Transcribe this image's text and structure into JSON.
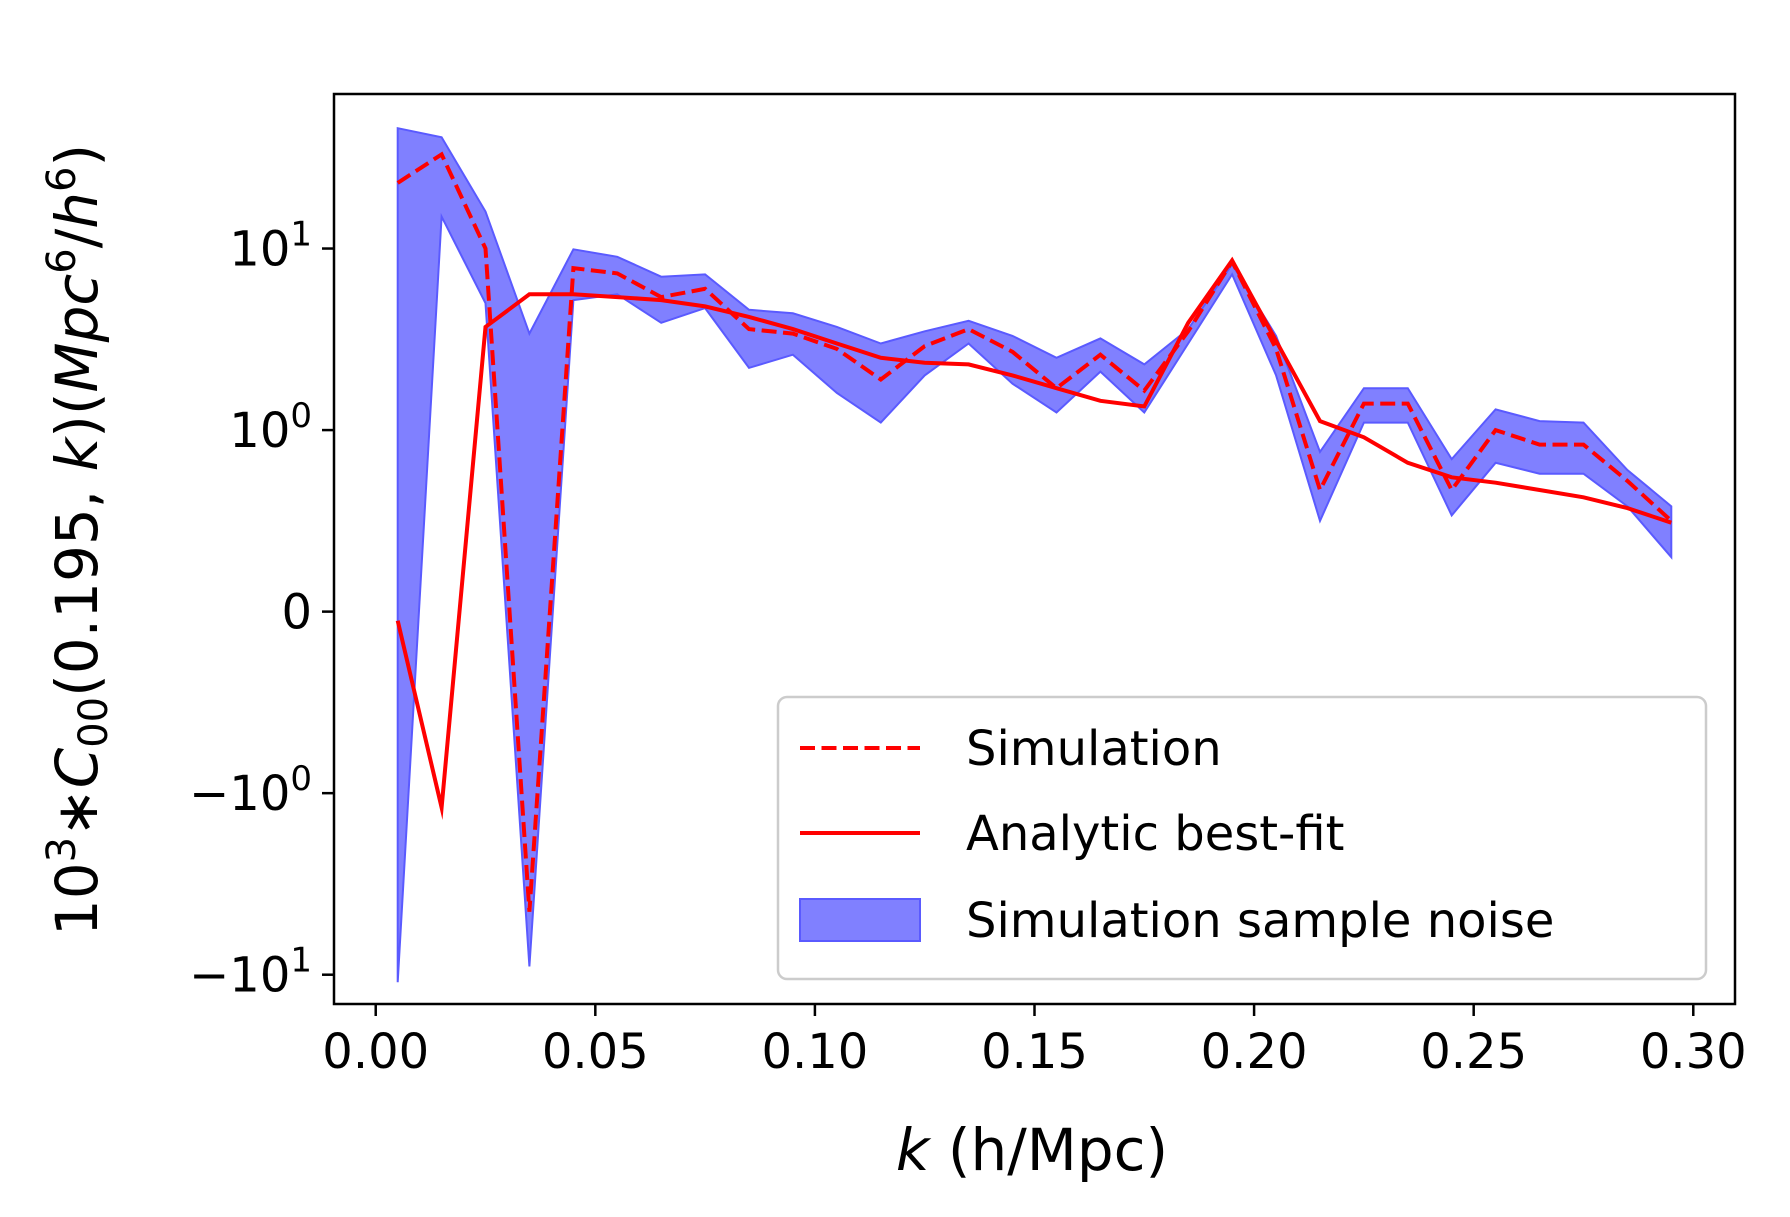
{
  "chart_data": {
    "type": "line",
    "title": "",
    "x_axis": {
      "label_italic": "k",
      "label_rest": " (h/Mpc)",
      "range": [
        -0.0095,
        0.3095
      ],
      "ticks": [
        {
          "value": 0.0,
          "label": "0.00"
        },
        {
          "value": 0.05,
          "label": "0.05"
        },
        {
          "value": 0.1,
          "label": "0.10"
        },
        {
          "value": 0.15,
          "label": "0.15"
        },
        {
          "value": 0.2,
          "label": "0.20"
        },
        {
          "value": 0.25,
          "label": "0.25"
        },
        {
          "value": 0.3,
          "label": "0.30"
        }
      ]
    },
    "y_axis": {
      "scale": "symlog",
      "linthresh": 1,
      "range": [
        -14.5,
        71
      ],
      "label_pre": "10",
      "label_pre_sup": "3",
      "label_star": "∗",
      "label_C": "C",
      "label_C_sub": "00",
      "label_args": "(0.195, ",
      "label_k": "k",
      "label_close": ")(",
      "label_unit_a": "Mpc",
      "label_unit_a_sup": "6",
      "label_unit_slash": "/",
      "label_unit_b": "h",
      "label_unit_b_sup": "6",
      "label_end": ")",
      "ticks": [
        {
          "value": 10,
          "base": "10",
          "exp": "1"
        },
        {
          "value": 1,
          "base": "10",
          "exp": "0"
        },
        {
          "value": 0,
          "base": "0",
          "exp": ""
        },
        {
          "value": -1,
          "base": "−10",
          "exp": "0"
        },
        {
          "value": -10,
          "base": "−10",
          "exp": "1"
        }
      ]
    },
    "x": [
      0.005,
      0.015,
      0.025,
      0.035,
      0.045,
      0.055,
      0.065,
      0.075,
      0.085,
      0.095,
      0.105,
      0.115,
      0.125,
      0.135,
      0.145,
      0.155,
      0.165,
      0.175,
      0.185,
      0.195,
      0.205,
      0.215,
      0.225,
      0.235,
      0.245,
      0.255,
      0.265,
      0.275,
      0.285,
      0.295
    ],
    "series": [
      {
        "name": "Simulation",
        "style": "dashed",
        "color": "#ff0000",
        "values": [
          23,
          33,
          10,
          -4.5,
          7.8,
          7.3,
          5.4,
          6.0,
          3.6,
          3.4,
          2.8,
          1.9,
          2.9,
          3.6,
          2.7,
          1.7,
          2.6,
          1.65,
          3.5,
          8.5,
          2.8,
          0.67,
          1.4,
          1.4,
          0.67,
          1.0,
          0.92,
          0.92,
          0.72,
          0.5
        ]
      },
      {
        "name": "Analytic best-fit",
        "style": "solid",
        "color": "#ff0000",
        "values": [
          -0.05,
          -1.2,
          3.7,
          5.6,
          5.6,
          5.4,
          5.2,
          4.8,
          4.2,
          3.6,
          3.0,
          2.5,
          2.35,
          2.3,
          2.0,
          1.7,
          1.45,
          1.35,
          3.9,
          8.6,
          3.1,
          1.12,
          0.96,
          0.82,
          0.74,
          0.71,
          0.67,
          0.63,
          0.57,
          0.49
        ]
      },
      {
        "name": "Simulation sample noise",
        "style": "band",
        "color": "#0000ff",
        "lower": [
          -11,
          15,
          5.0,
          -9,
          5.2,
          5.6,
          3.9,
          4.7,
          2.2,
          2.6,
          1.6,
          1.1,
          2.0,
          3.0,
          1.8,
          1.25,
          2.1,
          1.25,
          3.0,
          7.2,
          2.0,
          0.5,
          1.1,
          1.1,
          0.53,
          0.82,
          0.76,
          0.76,
          0.58,
          0.3
        ],
        "upper": [
          46,
          41,
          16,
          3.4,
          9.9,
          9.0,
          7.0,
          7.2,
          4.6,
          4.4,
          3.7,
          3.0,
          3.5,
          4.0,
          3.3,
          2.5,
          3.2,
          2.3,
          3.6,
          8.2,
          3.3,
          0.88,
          1.7,
          1.7,
          0.84,
          1.3,
          1.12,
          1.1,
          0.78,
          0.58
        ]
      }
    ],
    "legend": {
      "position": "lower-right",
      "entries": [
        "Simulation",
        "Analytic best-fit",
        "Simulation sample noise"
      ]
    },
    "colors": {
      "line": "#ff0000",
      "band_fill": "#8080ff",
      "band_edge": "#5a5aff"
    }
  }
}
